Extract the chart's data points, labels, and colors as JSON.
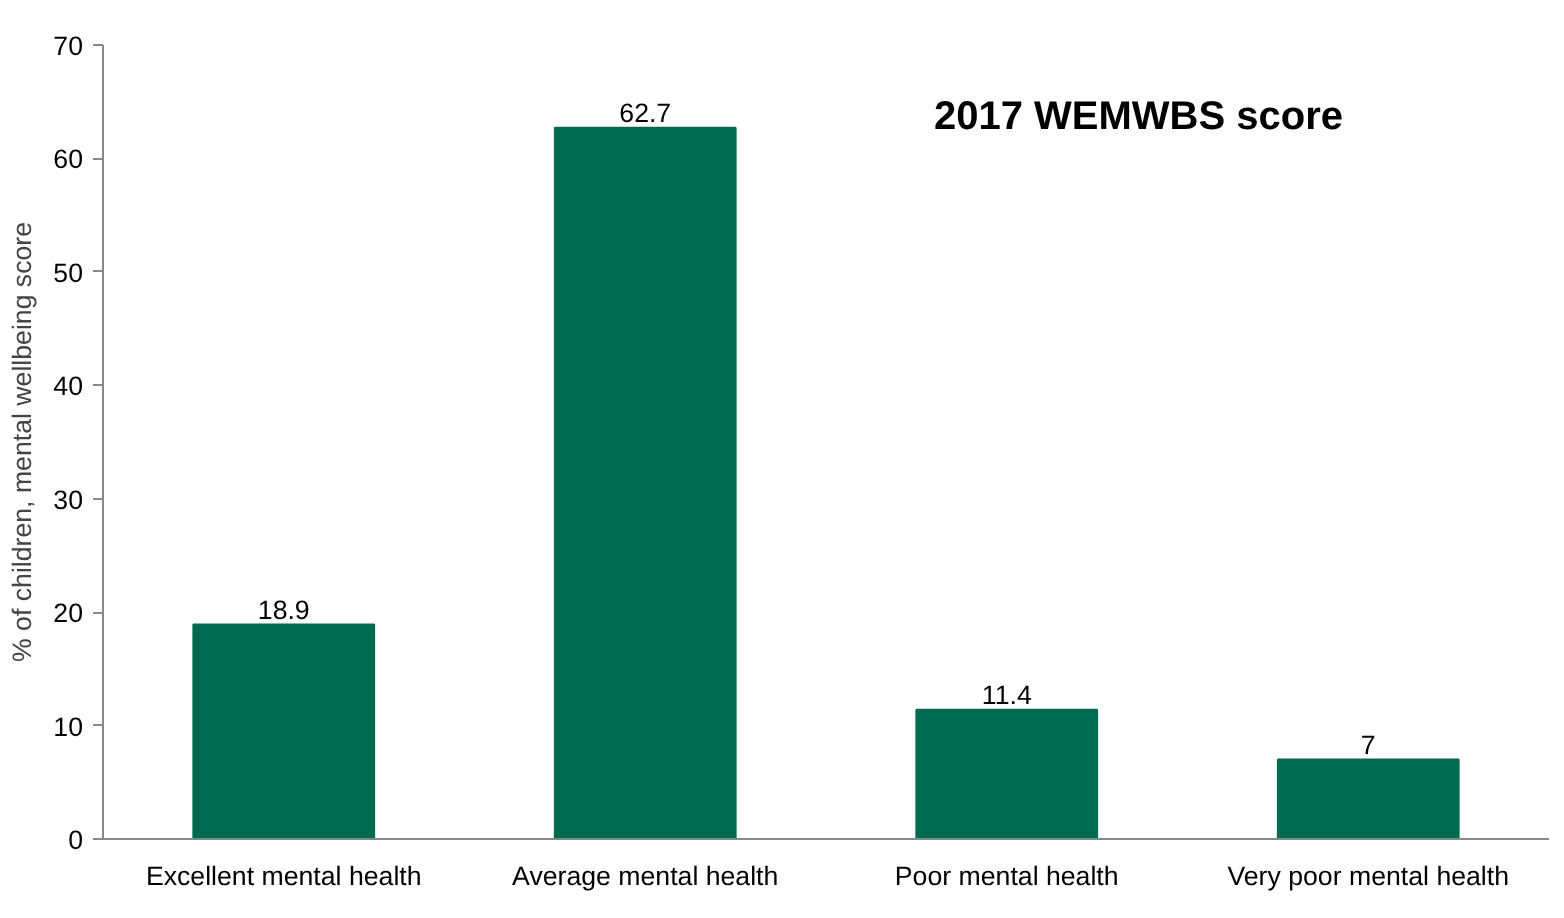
{
  "chart_data": {
    "type": "bar",
    "title": "2017 WEMWBS score",
    "ylabel": "% of children, mental wellbeing score",
    "categories": [
      "Excellent mental health",
      "Average mental health",
      "Poor mental health",
      "Very poor mental health"
    ],
    "values": [
      18.9,
      62.7,
      11.4,
      7
    ],
    "color": "#006a50",
    "ylim": [
      0,
      70
    ],
    "yticks": [
      0,
      10,
      20,
      30,
      40,
      50,
      60,
      70
    ],
    "grid": false,
    "data_labels": true
  }
}
